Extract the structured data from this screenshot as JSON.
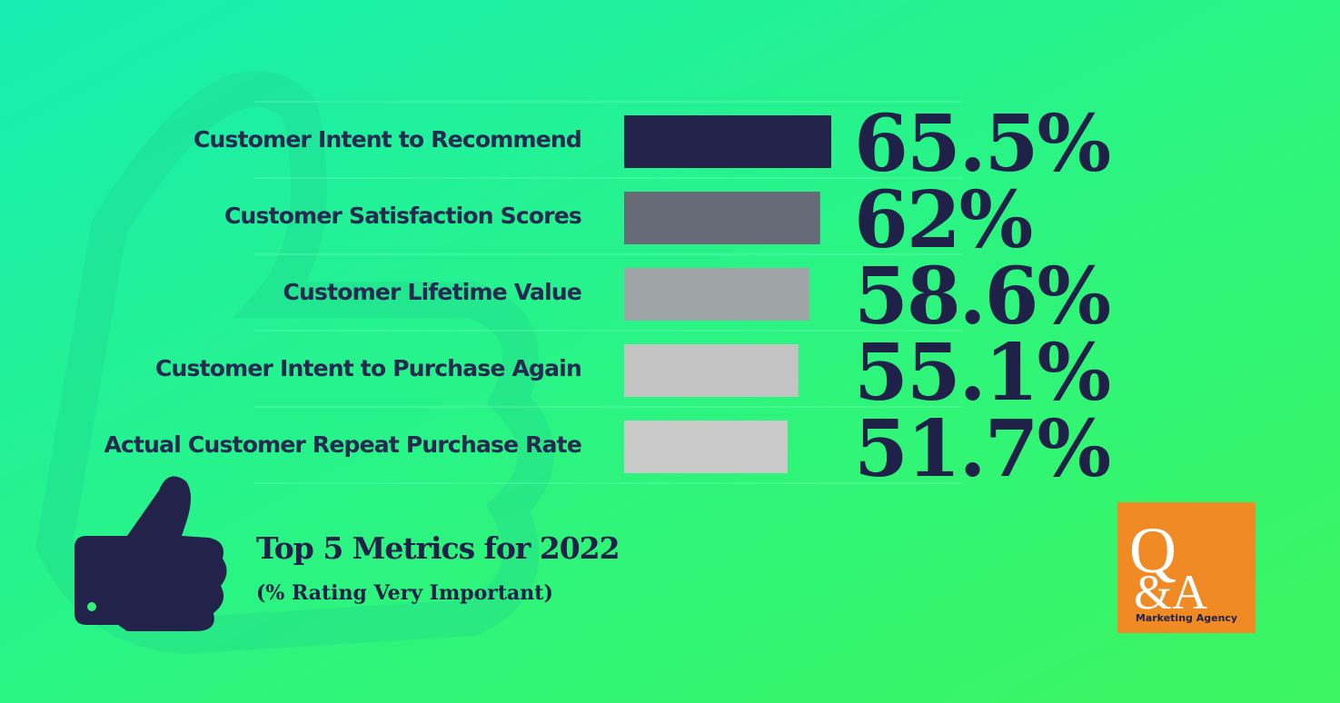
{
  "chart_data": {
    "type": "bar",
    "title": "Top 5 Metrics for 2022",
    "subtitle": "(% Rating Very Important)",
    "categories": [
      "Customer Intent to Recommend",
      "Customer Satisfaction Scores",
      "Customer Lifetime Value",
      "Customer Intent to Purchase Again",
      "Actual Customer Repeat Purchase Rate"
    ],
    "values": [
      65.5,
      62,
      58.6,
      55.1,
      51.7
    ],
    "value_labels": [
      "65.5%",
      "62%",
      "58.6%",
      "55.1%",
      "51.7%"
    ],
    "colors": [
      "#22224a",
      "#676b78",
      "#9fa4a7",
      "#c4c4c4",
      "#c9c9c9"
    ]
  },
  "logo": {
    "top": "Q",
    "bottom": "&A",
    "name": "Marketing Agency"
  }
}
